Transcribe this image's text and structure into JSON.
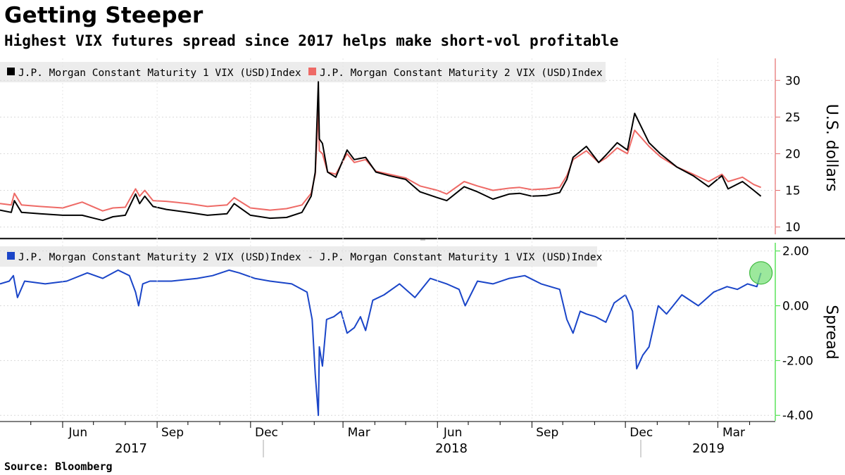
{
  "title": "Getting Steeper",
  "subtitle": "Highest VIX futures spread since 2017 helps make short-vol profitable",
  "source": "Source: Bloomberg",
  "colors": {
    "series1": "#000000",
    "series2": "#ee6a66",
    "spread": "#1a45c8",
    "axis_top": "#e46b6b",
    "axis_bottom": "#33dd33",
    "highlight": "#7be07b"
  },
  "x_axis": {
    "months": [
      "Jun",
      "Sep",
      "Dec",
      "Mar",
      "Jun",
      "Sep",
      "Dec",
      "Mar"
    ],
    "years": [
      "2017",
      "2018",
      "2019"
    ]
  },
  "chart_data": [
    {
      "type": "line",
      "legend": [
        "J.P. Morgan Constant Maturity 1 VIX (USD)Index",
        "J.P. Morgan Constant Maturity 2 VIX (USD)Index"
      ],
      "ylabel": "U.S. dollars",
      "ylim": [
        9,
        33
      ],
      "yticks": [
        "10",
        "15",
        "20",
        "25",
        "30"
      ],
      "x_range": [
        "2017-04-01",
        "2019-04-15"
      ],
      "series": [
        {
          "name": "J.P. Morgan Constant Maturity 1 VIX (USD)Index",
          "x": [
            "2017-04-01",
            "2017-04-12",
            "2017-04-15",
            "2017-04-22",
            "2017-05-10",
            "2017-06-01",
            "2017-06-20",
            "2017-07-10",
            "2017-07-20",
            "2017-08-01",
            "2017-08-11",
            "2017-08-15",
            "2017-08-20",
            "2017-08-28",
            "2017-09-10",
            "2017-10-01",
            "2017-10-20",
            "2017-11-08",
            "2017-11-15",
            "2017-12-01",
            "2017-12-20",
            "2018-01-05",
            "2018-01-20",
            "2018-01-29",
            "2018-02-02",
            "2018-02-05",
            "2018-02-06",
            "2018-02-09",
            "2018-02-14",
            "2018-02-22",
            "2018-03-05",
            "2018-03-12",
            "2018-03-23",
            "2018-04-02",
            "2018-04-15",
            "2018-05-01",
            "2018-05-15",
            "2018-06-01",
            "2018-06-10",
            "2018-06-27",
            "2018-07-10",
            "2018-07-25",
            "2018-08-10",
            "2018-08-20",
            "2018-09-01",
            "2018-09-15",
            "2018-09-28",
            "2018-10-05",
            "2018-10-11",
            "2018-10-24",
            "2018-11-05",
            "2018-11-12",
            "2018-11-23",
            "2018-12-03",
            "2018-12-10",
            "2018-12-24",
            "2019-01-04",
            "2019-01-20",
            "2019-02-05",
            "2019-02-20",
            "2019-03-05",
            "2019-03-11",
            "2019-03-25",
            "2019-04-05",
            "2019-04-12"
          ],
          "values": [
            12.3,
            12.0,
            13.6,
            12.0,
            11.8,
            11.6,
            11.6,
            10.9,
            11.4,
            11.6,
            14.5,
            13.2,
            14.2,
            12.8,
            12.4,
            12.0,
            11.6,
            11.8,
            13.2,
            11.6,
            11.2,
            11.3,
            12.0,
            14.2,
            17.5,
            29.8,
            22.0,
            21.4,
            17.5,
            16.8,
            20.5,
            19.2,
            19.5,
            17.5,
            17.0,
            16.5,
            14.8,
            14.0,
            13.6,
            15.5,
            14.8,
            13.8,
            14.5,
            14.6,
            14.2,
            14.3,
            14.7,
            16.5,
            19.5,
            21.0,
            18.8,
            19.8,
            21.5,
            20.5,
            25.5,
            21.5,
            20.0,
            18.2,
            17.0,
            15.5,
            17.0,
            15.2,
            16.2,
            15.0,
            14.2
          ]
        },
        {
          "name": "J.P. Morgan Constant Maturity 2 VIX (USD)Index",
          "x": [
            "2017-04-01",
            "2017-04-12",
            "2017-04-15",
            "2017-04-22",
            "2017-05-10",
            "2017-06-01",
            "2017-06-20",
            "2017-07-10",
            "2017-07-20",
            "2017-08-01",
            "2017-08-11",
            "2017-08-15",
            "2017-08-20",
            "2017-08-28",
            "2017-09-10",
            "2017-10-01",
            "2017-10-20",
            "2017-11-08",
            "2017-11-15",
            "2017-12-01",
            "2017-12-20",
            "2018-01-05",
            "2018-01-20",
            "2018-01-29",
            "2018-02-02",
            "2018-02-05",
            "2018-02-06",
            "2018-02-09",
            "2018-02-14",
            "2018-02-22",
            "2018-03-05",
            "2018-03-12",
            "2018-03-23",
            "2018-04-02",
            "2018-04-15",
            "2018-05-01",
            "2018-05-15",
            "2018-06-01",
            "2018-06-10",
            "2018-06-27",
            "2018-07-10",
            "2018-07-25",
            "2018-08-10",
            "2018-08-20",
            "2018-09-01",
            "2018-09-15",
            "2018-09-28",
            "2018-10-05",
            "2018-10-11",
            "2018-10-24",
            "2018-11-05",
            "2018-11-12",
            "2018-11-23",
            "2018-12-03",
            "2018-12-10",
            "2018-12-24",
            "2019-01-04",
            "2019-01-20",
            "2019-02-05",
            "2019-02-20",
            "2019-03-05",
            "2019-03-11",
            "2019-03-25",
            "2019-04-05",
            "2019-04-12"
          ],
          "values": [
            13.2,
            13.0,
            14.6,
            13.0,
            12.8,
            12.6,
            13.4,
            12.2,
            12.6,
            12.7,
            15.2,
            14.2,
            15.0,
            13.6,
            13.5,
            13.2,
            12.8,
            13.0,
            14.0,
            12.6,
            12.3,
            12.5,
            13.0,
            14.6,
            17.2,
            26.0,
            20.4,
            20.0,
            17.5,
            17.2,
            20.0,
            18.8,
            19.2,
            17.6,
            17.2,
            16.7,
            15.6,
            15.0,
            14.5,
            16.2,
            15.6,
            15.0,
            15.3,
            15.4,
            15.1,
            15.2,
            15.4,
            17.0,
            19.2,
            20.4,
            18.8,
            19.4,
            20.8,
            20.0,
            23.2,
            21.0,
            19.6,
            18.2,
            17.2,
            16.2,
            17.2,
            16.2,
            16.8,
            15.8,
            15.4
          ]
        }
      ]
    },
    {
      "type": "line",
      "legend": [
        "J.P. Morgan Constant Maturity 2 VIX (USD)Index - J.P. Morgan Constant Maturity 1 VIX (USD)Index"
      ],
      "ylabel": "Spread",
      "ylim": [
        -4.2,
        2.3
      ],
      "yticks": [
        "2.00",
        "0.00",
        "-2.00",
        "-4.00"
      ],
      "x_range": [
        "2017-04-01",
        "2019-04-15"
      ],
      "series": [
        {
          "name": "J.P. Morgan Constant Maturity 2 VIX (USD)Index - J.P. Morgan Constant Maturity 1 VIX (USD)Index",
          "x": [
            "2017-04-01",
            "2017-04-10",
            "2017-04-14",
            "2017-04-18",
            "2017-04-25",
            "2017-05-15",
            "2017-06-05",
            "2017-06-25",
            "2017-07-10",
            "2017-07-25",
            "2017-08-05",
            "2017-08-11",
            "2017-08-14",
            "2017-08-18",
            "2017-08-25",
            "2017-09-15",
            "2017-10-10",
            "2017-10-25",
            "2017-11-10",
            "2017-11-20",
            "2017-12-05",
            "2017-12-20",
            "2018-01-10",
            "2018-01-25",
            "2018-01-30",
            "2018-02-02",
            "2018-02-05",
            "2018-02-06",
            "2018-02-09",
            "2018-02-13",
            "2018-02-20",
            "2018-02-27",
            "2018-03-05",
            "2018-03-12",
            "2018-03-18",
            "2018-03-23",
            "2018-03-30",
            "2018-04-10",
            "2018-04-25",
            "2018-05-10",
            "2018-05-25",
            "2018-06-10",
            "2018-06-22",
            "2018-06-28",
            "2018-07-10",
            "2018-07-25",
            "2018-08-10",
            "2018-08-25",
            "2018-09-10",
            "2018-09-28",
            "2018-10-05",
            "2018-10-11",
            "2018-10-18",
            "2018-10-24",
            "2018-11-02",
            "2018-11-12",
            "2018-11-20",
            "2018-12-01",
            "2018-12-08",
            "2018-12-12",
            "2018-12-18",
            "2018-12-24",
            "2019-01-02",
            "2019-01-10",
            "2019-01-25",
            "2019-02-10",
            "2019-02-25",
            "2019-03-10",
            "2019-03-20",
            "2019-03-30",
            "2019-04-08",
            "2019-04-12"
          ],
          "values": [
            0.8,
            0.9,
            1.1,
            0.3,
            0.9,
            0.8,
            0.9,
            1.2,
            1.0,
            1.3,
            1.1,
            0.5,
            0.0,
            0.8,
            0.9,
            0.9,
            1.0,
            1.1,
            1.3,
            1.2,
            1.0,
            0.9,
            0.8,
            0.5,
            -0.5,
            -2.5,
            -4.0,
            -1.5,
            -2.2,
            -0.5,
            -0.4,
            -0.2,
            -1.0,
            -0.8,
            -0.4,
            -0.9,
            0.2,
            0.4,
            0.8,
            0.3,
            1.0,
            0.8,
            0.6,
            0.0,
            0.9,
            0.8,
            1.0,
            1.1,
            0.8,
            0.6,
            -0.5,
            -1.0,
            -0.2,
            -0.3,
            -0.4,
            -0.6,
            0.1,
            0.4,
            -0.2,
            -2.3,
            -1.8,
            -1.5,
            0.0,
            -0.3,
            0.4,
            0.0,
            0.5,
            0.7,
            0.6,
            0.8,
            0.7,
            1.2
          ]
        }
      ]
    }
  ]
}
